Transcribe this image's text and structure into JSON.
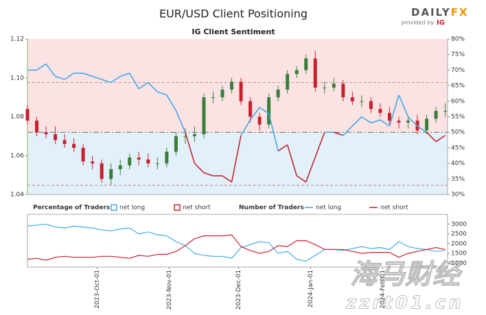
{
  "title": "EUR/USD Client Positioning",
  "logo": {
    "brand": "DAILY",
    "brand_accent": "FX",
    "tagline": "provided by",
    "tagline_brand": "IG"
  },
  "watermark": {
    "text": "海马财经",
    "url": "zzrt01.cn"
  },
  "chart_data": [
    {
      "type": "candlestick",
      "subtitle": "IG Client Sentiment",
      "x": [
        "2023-09-01",
        "2023-09-05",
        "2023-09-09",
        "2023-09-13",
        "2023-09-17",
        "2023-09-21",
        "2023-09-25",
        "2023-09-29",
        "2023-10-03",
        "2023-10-07",
        "2023-10-11",
        "2023-10-15",
        "2023-10-19",
        "2023-10-23",
        "2023-10-27",
        "2023-10-31",
        "2023-11-04",
        "2023-11-08",
        "2023-11-12",
        "2023-11-16",
        "2023-11-20",
        "2023-11-24",
        "2023-11-28",
        "2023-12-02",
        "2023-12-06",
        "2023-12-10",
        "2023-12-14",
        "2023-12-18",
        "2023-12-22",
        "2023-12-26",
        "2023-12-30",
        "2024-01-03",
        "2024-01-07",
        "2024-01-11",
        "2024-01-15",
        "2024-01-19",
        "2024-01-23",
        "2024-01-27",
        "2024-01-31",
        "2024-02-04",
        "2024-02-08",
        "2024-02-12",
        "2024-02-16",
        "2024-02-20",
        "2024-02-24",
        "2024-02-28"
      ],
      "open": [
        1.084,
        1.078,
        1.072,
        1.071,
        1.068,
        1.066,
        1.064,
        1.057,
        1.056,
        1.048,
        1.053,
        1.055,
        1.059,
        1.058,
        1.056,
        1.056,
        1.062,
        1.07,
        1.07,
        1.071,
        1.09,
        1.09,
        1.094,
        1.098,
        1.088,
        1.08,
        1.076,
        1.09,
        1.094,
        1.102,
        1.104,
        1.11,
        1.095,
        1.095,
        1.097,
        1.09,
        1.088,
        1.088,
        1.084,
        1.082,
        1.078,
        1.077,
        1.078,
        1.073,
        1.079,
        1.083
      ],
      "high": [
        1.086,
        1.08,
        1.075,
        1.075,
        1.071,
        1.069,
        1.066,
        1.06,
        1.058,
        1.056,
        1.058,
        1.061,
        1.062,
        1.061,
        1.059,
        1.064,
        1.072,
        1.074,
        1.075,
        1.092,
        1.093,
        1.096,
        1.1,
        1.1,
        1.09,
        1.082,
        1.092,
        1.096,
        1.104,
        1.106,
        1.112,
        1.114,
        1.098,
        1.1,
        1.099,
        1.093,
        1.091,
        1.09,
        1.087,
        1.085,
        1.08,
        1.08,
        1.081,
        1.081,
        1.085,
        1.087
      ],
      "low": [
        1.076,
        1.07,
        1.069,
        1.066,
        1.064,
        1.062,
        1.055,
        1.053,
        1.046,
        1.045,
        1.05,
        1.053,
        1.055,
        1.054,
        1.053,
        1.054,
        1.06,
        1.066,
        1.067,
        1.069,
        1.087,
        1.088,
        1.092,
        1.086,
        1.077,
        1.073,
        1.074,
        1.088,
        1.092,
        1.1,
        1.102,
        1.093,
        1.092,
        1.093,
        1.088,
        1.086,
        1.085,
        1.082,
        1.08,
        1.076,
        1.074,
        1.074,
        1.071,
        1.071,
        1.077,
        1.08
      ],
      "close": [
        1.078,
        1.072,
        1.071,
        1.068,
        1.066,
        1.064,
        1.057,
        1.056,
        1.048,
        1.053,
        1.055,
        1.059,
        1.058,
        1.056,
        1.056,
        1.062,
        1.07,
        1.07,
        1.071,
        1.09,
        1.09,
        1.094,
        1.098,
        1.088,
        1.08,
        1.076,
        1.09,
        1.094,
        1.102,
        1.104,
        1.11,
        1.095,
        1.095,
        1.097,
        1.09,
        1.088,
        1.088,
        1.084,
        1.082,
        1.078,
        1.077,
        1.078,
        1.073,
        1.079,
        1.083,
        1.083
      ],
      "up_color": "#3a7d3a",
      "down_color": "#c8202e",
      "xlim": [
        "2023-09-01",
        "2024-02-29"
      ],
      "ylim": [
        1.04,
        1.12
      ],
      "yticks": [
        1.04,
        1.06,
        1.08,
        {
          "value": 1.1,
          "label": "1.10"
        },
        1.12
      ],
      "y2lim": [
        30,
        80
      ],
      "y2ticks": [
        {
          "value": 30,
          "label": "30%"
        },
        {
          "value": 35,
          "label": "35%"
        },
        {
          "value": 40,
          "label": "40%"
        },
        {
          "value": 45,
          "label": "45%"
        },
        {
          "value": 50,
          "label": "50%"
        },
        {
          "value": 55,
          "label": "55%"
        },
        {
          "value": 60,
          "label": "60%"
        },
        {
          "value": 65,
          "label": "65%"
        },
        {
          "value": 70,
          "label": "70%"
        },
        {
          "value": 75,
          "label": "75%"
        },
        {
          "value": 80,
          "label": "80%"
        }
      ],
      "threshold": 50,
      "reference_lines": [
        66,
        50,
        33
      ],
      "percent": {
        "axis": "y2",
        "values": [
          70,
          70,
          72,
          68,
          67,
          69,
          69,
          68,
          67,
          66,
          68,
          69,
          64,
          66,
          63,
          62,
          57,
          50,
          40,
          37,
          36,
          36,
          34,
          49,
          54,
          58,
          56,
          44,
          46,
          36,
          34,
          42,
          50,
          50,
          49,
          52,
          55,
          53,
          54,
          52,
          62,
          55,
          52,
          50,
          47,
          49
        ]
      },
      "percent_legend": {
        "title": "Percentage of Traders",
        "items": [
          {
            "name": "net long",
            "color": "#3fa9e8"
          },
          {
            "name": "net short",
            "color": "#c8202e"
          }
        ]
      }
    },
    {
      "type": "line",
      "legend_title": "Number of Traders",
      "xlim": [
        "2023-09-01",
        "2024-02-29"
      ],
      "xticks": [
        {
          "value": "2023-10-01",
          "label": "2023-Oct-01"
        },
        {
          "value": "2023-11-01",
          "label": "2023-Nov-01"
        },
        {
          "value": "2023-12-01",
          "label": "2023-Dec-01"
        },
        {
          "value": "2024-01-01",
          "label": "2024-Jan-01"
        },
        {
          "value": "2024-02-01",
          "label": "2024-Feb-01"
        }
      ],
      "y2lim": [
        800,
        3500
      ],
      "y2ticks": [
        1000,
        1500,
        2000,
        2500,
        3000
      ],
      "series": [
        {
          "name": "net long",
          "color": "#3fa9e8",
          "values": [
            2900,
            2950,
            3000,
            2850,
            2800,
            2900,
            2850,
            2800,
            2700,
            2650,
            2750,
            2800,
            2500,
            2600,
            2450,
            2400,
            2100,
            1900,
            1500,
            1400,
            1350,
            1350,
            1250,
            1800,
            1950,
            2100,
            2050,
            1500,
            1600,
            1200,
            1100,
            1400,
            1700,
            1700,
            1650,
            1750,
            1850,
            1750,
            1800,
            1700,
            2100,
            1850,
            1750,
            1700,
            1600,
            1650
          ]
        },
        {
          "name": "net short",
          "color": "#c8202e",
          "values": [
            1200,
            1250,
            1150,
            1300,
            1350,
            1300,
            1300,
            1300,
            1350,
            1350,
            1300,
            1250,
            1400,
            1350,
            1450,
            1450,
            1600,
            1900,
            2250,
            2400,
            2400,
            2400,
            2450,
            1850,
            1650,
            1500,
            1600,
            1900,
            1850,
            2150,
            2150,
            1950,
            1700,
            1700,
            1700,
            1600,
            1500,
            1550,
            1550,
            1550,
            1300,
            1500,
            1600,
            1700,
            1800,
            1700
          ]
        }
      ]
    }
  ]
}
